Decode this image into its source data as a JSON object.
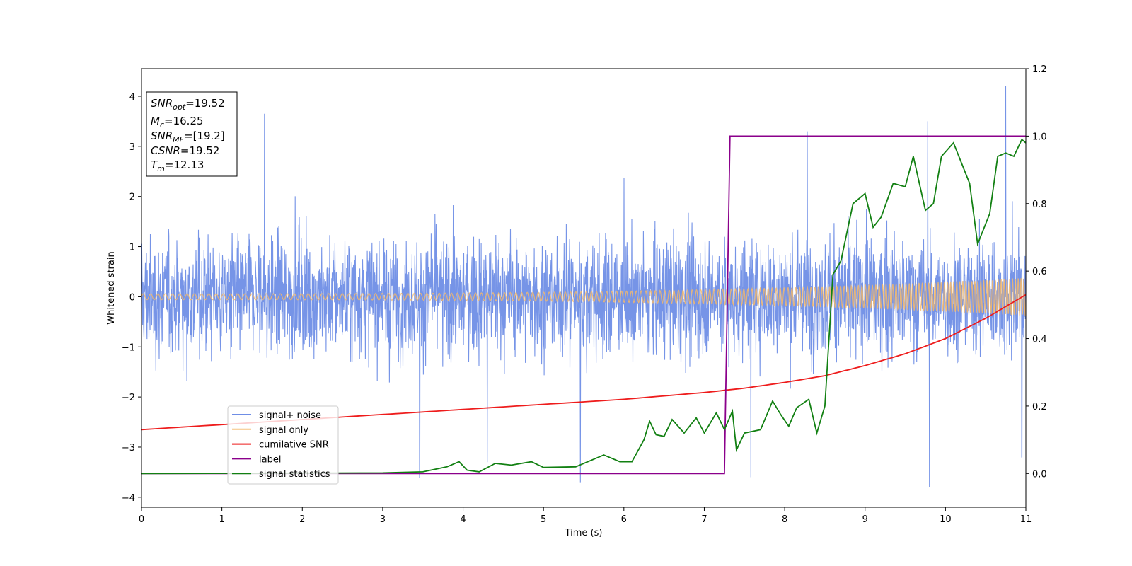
{
  "chart_data": {
    "type": "line",
    "xlabel": "Time (s)",
    "ylabel_left": "Whitened strain",
    "xlim": [
      0,
      11
    ],
    "ylim_left": [
      -4.2,
      4.55
    ],
    "ylim_right": [
      -0.1,
      1.2
    ],
    "x_ticks": [
      0,
      1,
      2,
      3,
      4,
      5,
      6,
      7,
      8,
      9,
      10,
      11
    ],
    "y_ticks_left": [
      -4,
      -3,
      -2,
      -1,
      0,
      1,
      2,
      3,
      4
    ],
    "y_ticks_right": [
      "0.0",
      "0.2",
      "0.4",
      "0.6",
      "0.8",
      "1.0",
      "1.2"
    ],
    "grid": false,
    "legend_position": "lower-left",
    "colors": {
      "noise": "#6f8ee6",
      "signal": "#f5b86a",
      "csnr": "#ee1c1c",
      "label": "#8b008b",
      "stats": "#128012"
    },
    "series": [
      {
        "name": "signal+ noise",
        "axis": "left",
        "description_values": "dense noise band, approx +-2.3 envelope with spikes up to 4.2 and down to -3.8",
        "spikes": [
          [
            1.53,
            3.65
          ],
          [
            8.28,
            3.3
          ],
          [
            9.78,
            3.5
          ],
          [
            10.75,
            4.2
          ],
          [
            9.8,
            -3.8
          ],
          [
            5.46,
            -3.7
          ],
          [
            3.46,
            -3.6
          ],
          [
            4.3,
            -3.3
          ],
          [
            7.58,
            -3.6
          ],
          [
            10.95,
            -3.2
          ]
        ]
      },
      {
        "name": "signal only",
        "axis": "left",
        "amplitude_start": 0.06,
        "amplitude_end": 0.38,
        "x_start": 0,
        "x_end": 11
      },
      {
        "name": "cumilative SNR",
        "axis": "right",
        "x": [
          0,
          1,
          2,
          3,
          4,
          5,
          6,
          7,
          7.5,
          8,
          8.5,
          9,
          9.5,
          10,
          10.5,
          11
        ],
        "y": [
          0.13,
          0.145,
          0.16,
          0.175,
          0.19,
          0.205,
          0.22,
          0.24,
          0.253,
          0.27,
          0.29,
          0.32,
          0.355,
          0.4,
          0.46,
          0.53
        ]
      },
      {
        "name": "label",
        "axis": "right",
        "x": [
          0,
          7.25,
          7.32,
          11
        ],
        "y": [
          0,
          0,
          1,
          1
        ]
      },
      {
        "name": "signal statistics",
        "axis": "right",
        "x": [
          0,
          2,
          3,
          3.5,
          3.8,
          3.95,
          4.05,
          4.2,
          4.4,
          4.6,
          4.85,
          5.0,
          5.4,
          5.75,
          5.95,
          6.1,
          6.25,
          6.32,
          6.4,
          6.5,
          6.6,
          6.75,
          6.9,
          7.0,
          7.15,
          7.25,
          7.35,
          7.4,
          7.5,
          7.6,
          7.7,
          7.85,
          7.95,
          8.05,
          8.15,
          8.3,
          8.4,
          8.5,
          8.6,
          8.7,
          8.85,
          9.0,
          9.1,
          9.2,
          9.35,
          9.5,
          9.6,
          9.75,
          9.85,
          9.95,
          10.1,
          10.3,
          10.4,
          10.55,
          10.65,
          10.75,
          10.85,
          10.95,
          11.0
        ],
        "y": [
          0.0,
          0.001,
          0.002,
          0.005,
          0.02,
          0.035,
          0.01,
          0.005,
          0.03,
          0.025,
          0.035,
          0.018,
          0.02,
          0.055,
          0.035,
          0.035,
          0.1,
          0.155,
          0.115,
          0.11,
          0.16,
          0.12,
          0.165,
          0.12,
          0.18,
          0.13,
          0.185,
          0.07,
          0.12,
          0.125,
          0.13,
          0.215,
          0.175,
          0.14,
          0.195,
          0.22,
          0.12,
          0.2,
          0.59,
          0.63,
          0.8,
          0.83,
          0.73,
          0.76,
          0.86,
          0.85,
          0.94,
          0.78,
          0.8,
          0.94,
          0.98,
          0.86,
          0.68,
          0.77,
          0.94,
          0.95,
          0.94,
          0.99,
          0.98
        ]
      }
    ],
    "annotation": {
      "lines": [
        {
          "name": "SNR",
          "sub": "opt",
          "value": "=19.52"
        },
        {
          "name": "M",
          "sub": "c",
          "value": "=16.25"
        },
        {
          "name": "SNR",
          "sub": "MF",
          "value": "=[19.2]"
        },
        {
          "name": "CSNR",
          "sub": "",
          "value": "=19.52"
        },
        {
          "name": "T",
          "sub": "m",
          "value": "=12.13"
        }
      ]
    }
  }
}
